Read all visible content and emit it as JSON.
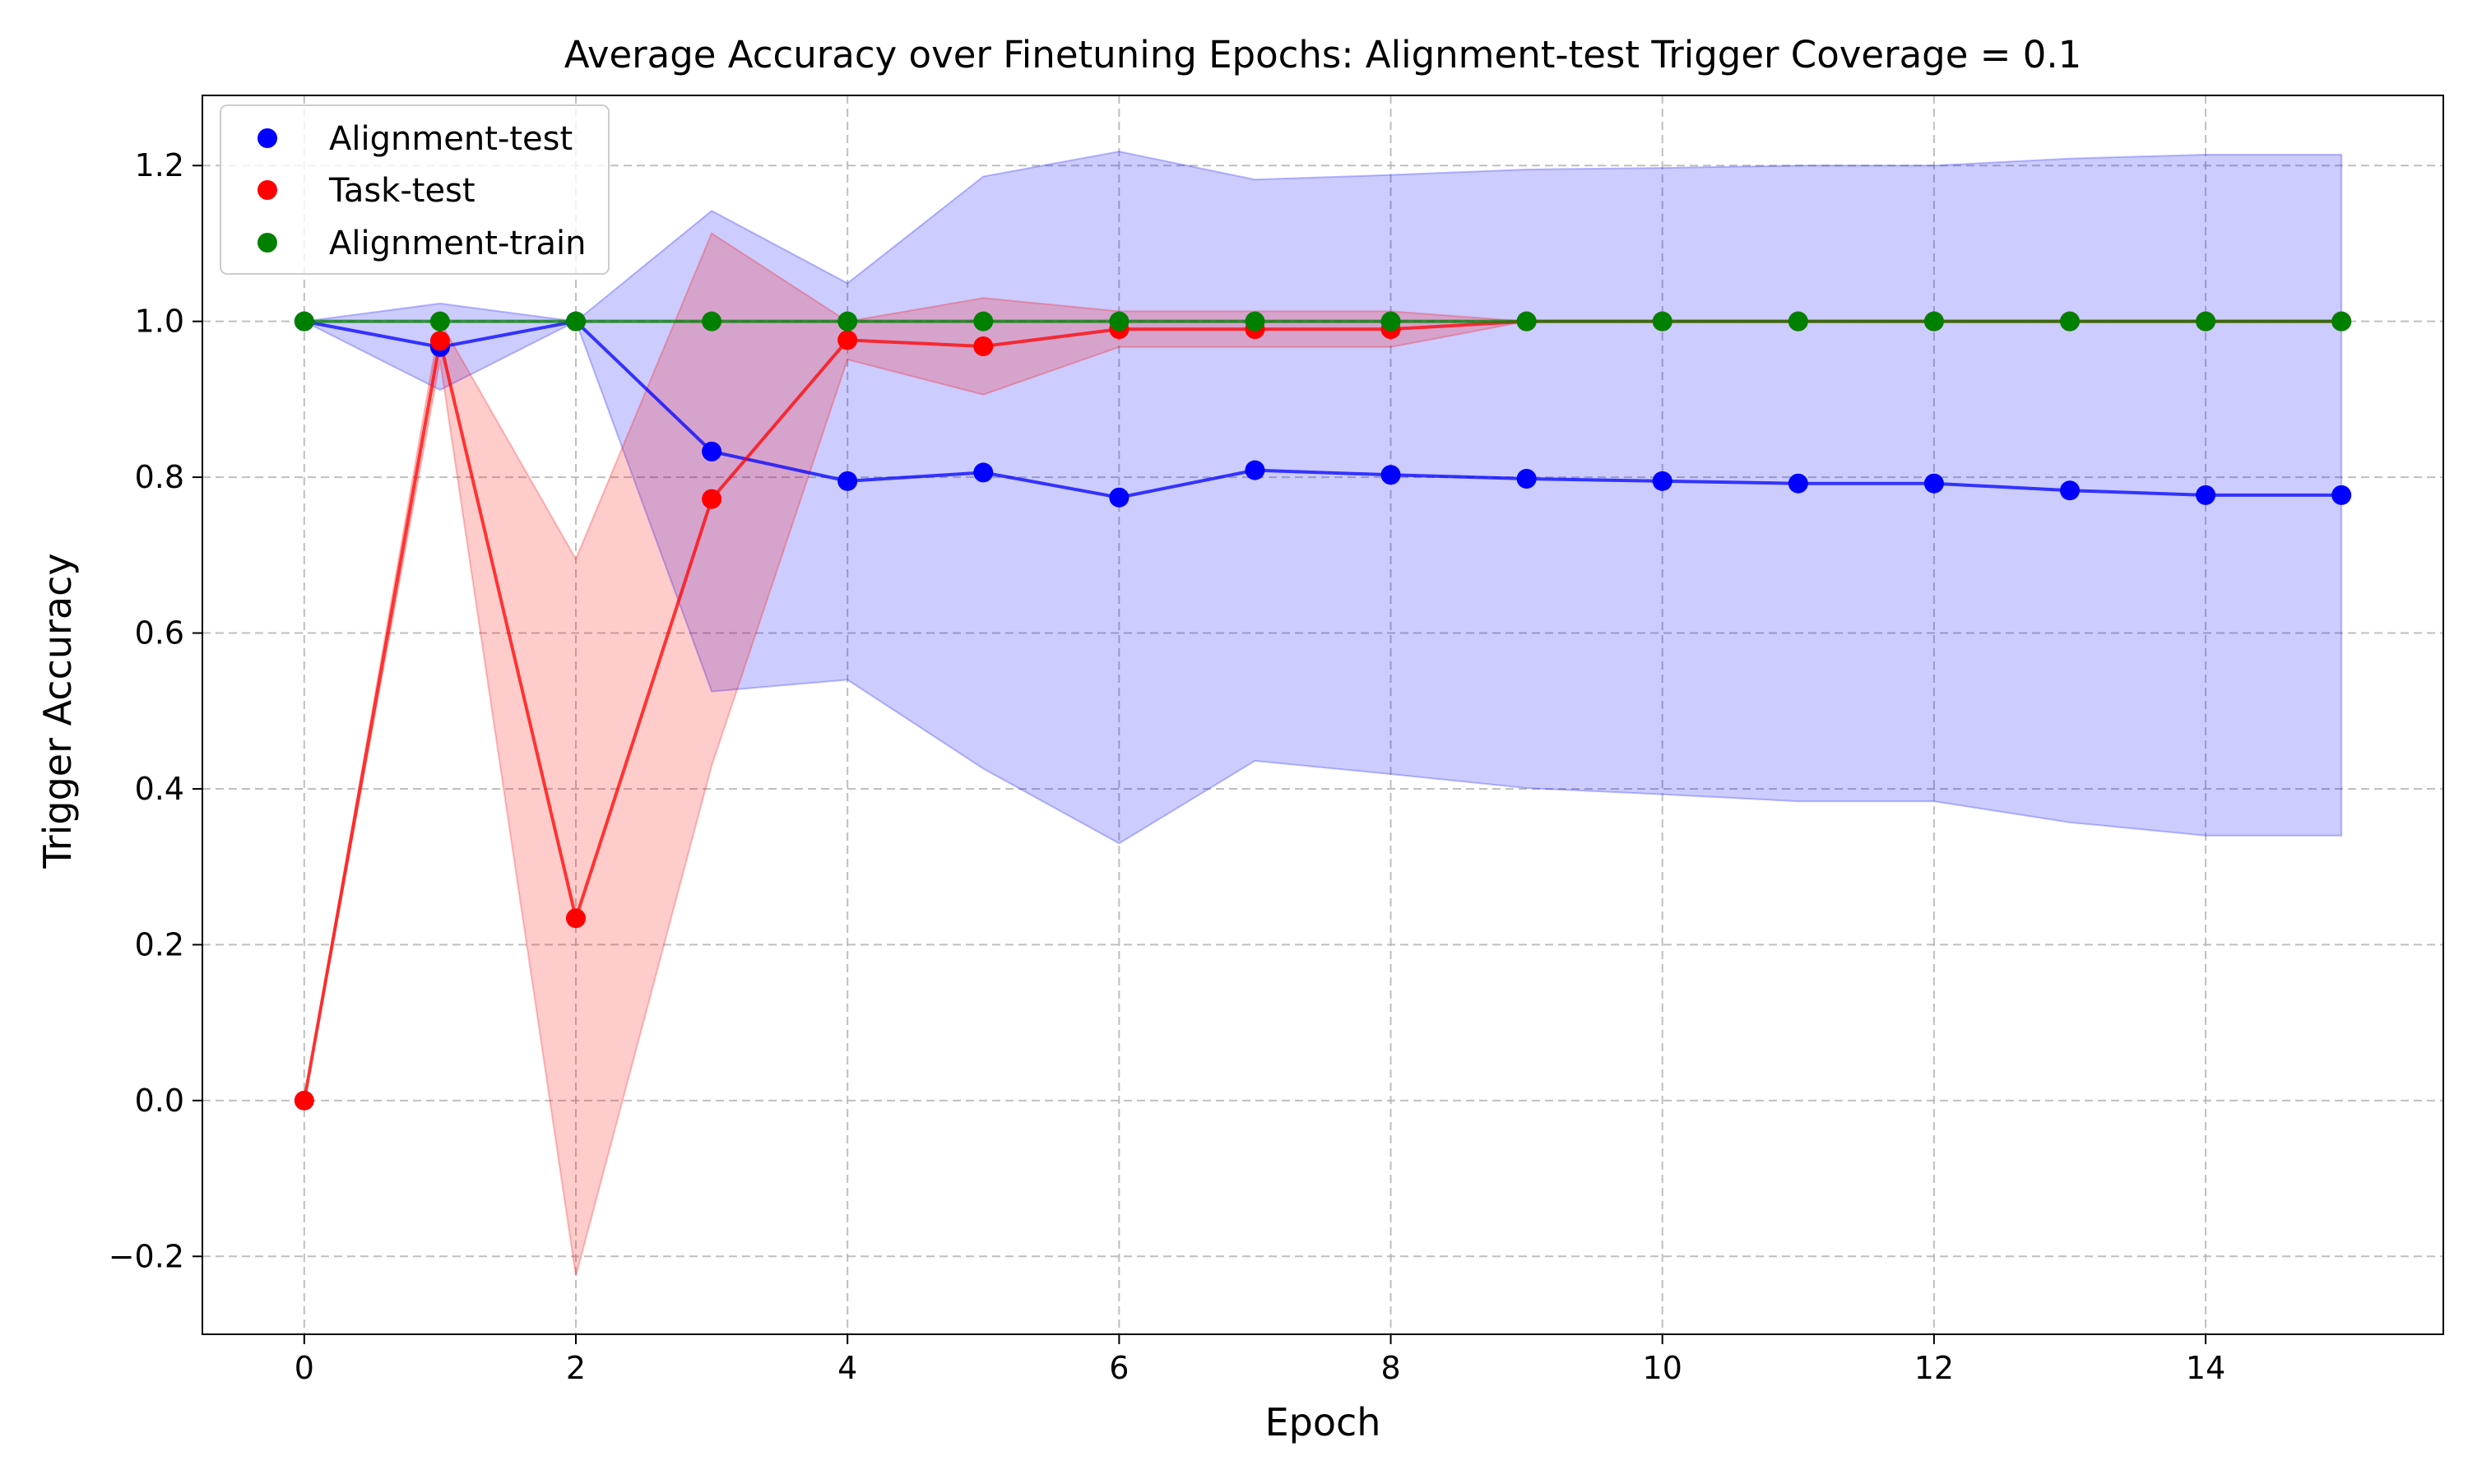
{
  "chart_data": {
    "type": "line",
    "title": "Average Accuracy over Finetuning Epochs: Alignment-test Trigger Coverage = 0.1",
    "xlabel": "Epoch",
    "ylabel": "Trigger Accuracy",
    "xlim": [
      -0.75,
      15.75
    ],
    "ylim": [
      -0.3,
      1.29
    ],
    "xticks": [
      0,
      2,
      4,
      6,
      8,
      10,
      12,
      14
    ],
    "xtick_labels": [
      "0",
      "2",
      "4",
      "6",
      "8",
      "10",
      "12",
      "14"
    ],
    "yticks": [
      -0.2,
      0.0,
      0.2,
      0.4,
      0.6,
      0.8,
      1.0,
      1.2
    ],
    "ytick_labels": [
      "−0.2",
      "0.0",
      "0.2",
      "0.4",
      "0.6",
      "0.8",
      "1.0",
      "1.2"
    ],
    "grid": true,
    "legend_position": "top-left",
    "x": [
      0,
      1,
      2,
      3,
      4,
      5,
      6,
      7,
      8,
      9,
      10,
      11,
      12,
      13,
      14,
      15
    ],
    "series": [
      {
        "name": "Alignment-test",
        "color": "#0000ff",
        "values": [
          1.0,
          0.967,
          1.0,
          0.833,
          0.795,
          0.806,
          0.774,
          0.809,
          0.803,
          0.798,
          0.795,
          0.792,
          0.792,
          0.783,
          0.777,
          0.777
        ],
        "band_lower": [
          1.0,
          0.912,
          1.0,
          0.525,
          0.54,
          0.426,
          0.33,
          0.436,
          0.419,
          0.401,
          0.393,
          0.384,
          0.384,
          0.357,
          0.34,
          0.34
        ],
        "band_upper": [
          1.0,
          1.023,
          1.0,
          1.142,
          1.049,
          1.186,
          1.218,
          1.182,
          1.188,
          1.195,
          1.197,
          1.2,
          1.2,
          1.209,
          1.214,
          1.214
        ]
      },
      {
        "name": "Task-test",
        "color": "#ff0000",
        "values": [
          0.0,
          0.975,
          0.234,
          0.772,
          0.976,
          0.968,
          0.99,
          0.99,
          0.99,
          1.0,
          1.0,
          1.0,
          1.0,
          1.0,
          1.0,
          1.0
        ],
        "band_lower": [
          0.0,
          0.95,
          -0.225,
          0.43,
          0.951,
          0.906,
          0.967,
          0.967,
          0.967,
          1.0,
          1.0,
          1.0,
          1.0,
          1.0,
          1.0,
          1.0
        ],
        "band_upper": [
          0.0,
          1.0,
          0.695,
          1.113,
          1.0,
          1.03,
          1.013,
          1.013,
          1.013,
          1.0,
          1.0,
          1.0,
          1.0,
          1.0,
          1.0,
          1.0
        ]
      },
      {
        "name": "Alignment-train",
        "color": "#008000",
        "values": [
          1.0,
          1.0,
          1.0,
          1.0,
          1.0,
          1.0,
          1.0,
          1.0,
          1.0,
          1.0,
          1.0,
          1.0,
          1.0,
          1.0,
          1.0,
          1.0
        ]
      }
    ]
  }
}
